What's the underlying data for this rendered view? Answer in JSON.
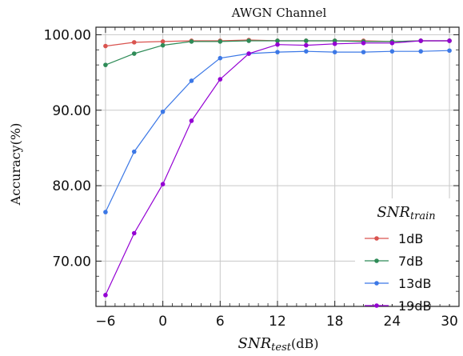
{
  "chart_data": {
    "type": "line",
    "title": "AWGN Channel",
    "xlabel": {
      "main": "SNR",
      "sub": "test",
      "unit": "(dB)"
    },
    "ylabel": "Accuracy(%)",
    "xlim": [
      -7,
      31
    ],
    "ylim": [
      64,
      101
    ],
    "xticks": [
      -6,
      0,
      6,
      12,
      18,
      24,
      30
    ],
    "xtick_labels": [
      "−6",
      "0",
      "6",
      "12",
      "18",
      "24",
      "30"
    ],
    "yticks": [
      70,
      80,
      90,
      100
    ],
    "ytick_labels": [
      "70.00",
      "80.00",
      "90.00",
      "100.00"
    ],
    "grid": true,
    "legend": {
      "title_main": "SNR",
      "title_sub": "train",
      "position": "lower-right"
    },
    "x": [
      -6,
      -3,
      0,
      3,
      6,
      9,
      12,
      15,
      18,
      21,
      24,
      27,
      30
    ],
    "series": [
      {
        "name": "1dB",
        "color": "#d9534f",
        "values": [
          98.5,
          99.0,
          99.1,
          99.2,
          99.2,
          99.3,
          99.2,
          99.2,
          99.2,
          99.2,
          99.1,
          99.2,
          99.2
        ]
      },
      {
        "name": "7dB",
        "color": "#2e8b57",
        "values": [
          96.0,
          97.5,
          98.6,
          99.1,
          99.1,
          99.2,
          99.2,
          99.2,
          99.2,
          99.1,
          99.1,
          99.2,
          99.2
        ]
      },
      {
        "name": "13dB",
        "color": "#3c78e6",
        "values": [
          76.5,
          84.5,
          89.8,
          93.9,
          96.9,
          97.5,
          97.7,
          97.8,
          97.7,
          97.7,
          97.8,
          97.8,
          97.9
        ]
      },
      {
        "name": "19dB",
        "color": "#9400d3",
        "values": [
          65.5,
          73.7,
          80.2,
          88.6,
          94.1,
          97.5,
          98.7,
          98.6,
          98.8,
          98.9,
          98.9,
          99.2,
          99.2
        ]
      }
    ]
  }
}
